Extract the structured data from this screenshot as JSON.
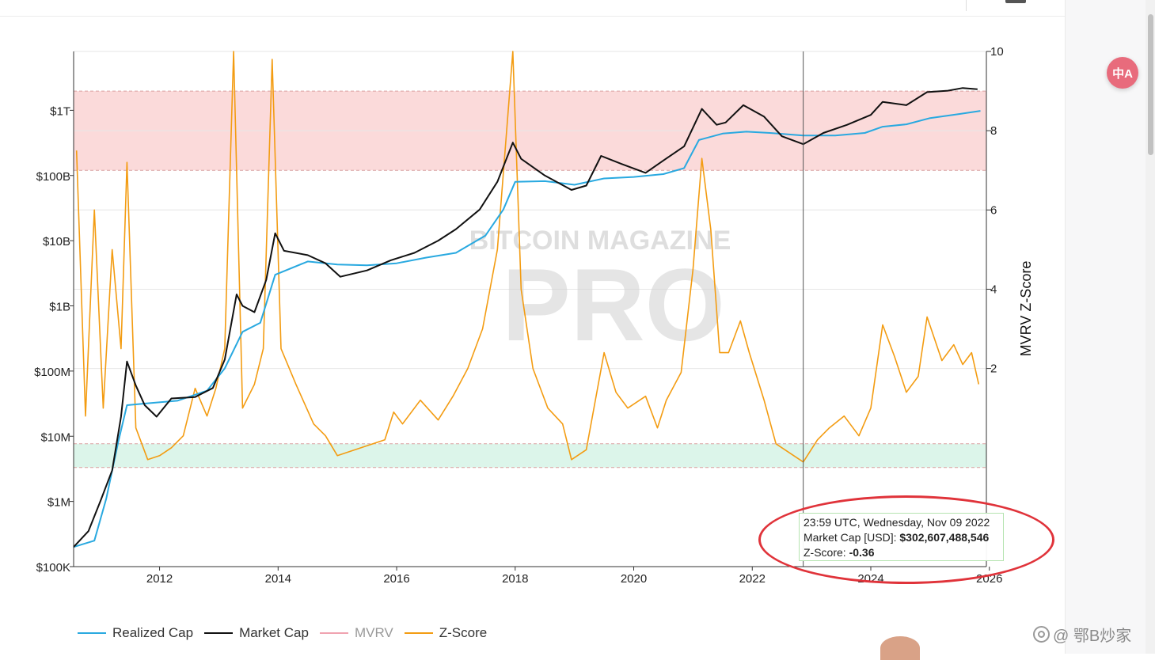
{
  "chart_data": {
    "type": "line",
    "title": "",
    "watermark": [
      "BITCOIN MAGAZINE",
      "PRO"
    ],
    "x_range": [
      2010.55,
      2025.95
    ],
    "x_ticks": [
      {
        "value": 2012,
        "label": "2012"
      },
      {
        "value": 2014,
        "label": "2014"
      },
      {
        "value": 2016,
        "label": "2016"
      },
      {
        "value": 2018,
        "label": "2018"
      },
      {
        "value": 2020,
        "label": "2020"
      },
      {
        "value": 2022,
        "label": "2022"
      },
      {
        "value": 2024,
        "label": "2024"
      },
      {
        "value": 2026,
        "label": "2026"
      }
    ],
    "y_left": {
      "scale": "log",
      "range": [
        100000,
        8000000000000
      ],
      "ticks": [
        {
          "value": 100000,
          "label": "$100K"
        },
        {
          "value": 1000000,
          "label": "$1M"
        },
        {
          "value": 10000000,
          "label": "$10M"
        },
        {
          "value": 100000000,
          "label": "$100M"
        },
        {
          "value": 1000000000,
          "label": "$1B"
        },
        {
          "value": 10000000000,
          "label": "$10B"
        },
        {
          "value": 100000000000,
          "label": "$100B"
        },
        {
          "value": 1000000000000,
          "label": "$1T"
        }
      ]
    },
    "y_right": {
      "label": "MVRV Z-Score",
      "range": [
        -3,
        10
      ],
      "ticks": [
        {
          "value": 2,
          "label": "2"
        },
        {
          "value": 4,
          "label": "4"
        },
        {
          "value": 6,
          "label": "6"
        },
        {
          "value": 8,
          "label": "8"
        },
        {
          "value": 10,
          "label": "10"
        }
      ]
    },
    "bands": [
      {
        "name": "overvalued",
        "from": 7,
        "to": 9,
        "color": "#fbdada"
      },
      {
        "name": "undervalued",
        "from": -0.5,
        "to": 0.1,
        "color": "#dcf5ea"
      }
    ],
    "crosshair_x": 2022.86,
    "legend": [
      {
        "label": "Realized Cap",
        "color": "#29a9e0",
        "active": true
      },
      {
        "label": "Market Cap",
        "color": "#111111",
        "active": true
      },
      {
        "label": "MVRV",
        "color": "#f0a3b0",
        "active": false
      },
      {
        "label": "Z-Score",
        "color": "#f39c12",
        "active": true
      }
    ],
    "series": [
      {
        "name": "Market Cap",
        "axis": "left",
        "color": "#111111",
        "points": [
          [
            2010.55,
            200000
          ],
          [
            2010.8,
            350000
          ],
          [
            2011.0,
            1000000
          ],
          [
            2011.2,
            3000000
          ],
          [
            2011.35,
            20000000
          ],
          [
            2011.45,
            140000000
          ],
          [
            2011.6,
            60000000
          ],
          [
            2011.75,
            30000000
          ],
          [
            2011.95,
            20000000
          ],
          [
            2012.2,
            38000000
          ],
          [
            2012.6,
            40000000
          ],
          [
            2012.9,
            55000000
          ],
          [
            2013.1,
            150000000
          ],
          [
            2013.3,
            1500000000
          ],
          [
            2013.4,
            1000000000
          ],
          [
            2013.6,
            800000000
          ],
          [
            2013.8,
            2500000000
          ],
          [
            2013.95,
            13000000000
          ],
          [
            2014.1,
            7000000000
          ],
          [
            2014.5,
            6000000000
          ],
          [
            2014.8,
            4500000000
          ],
          [
            2015.05,
            2800000000
          ],
          [
            2015.5,
            3500000000
          ],
          [
            2015.9,
            5000000000
          ],
          [
            2016.3,
            6500000000
          ],
          [
            2016.7,
            10000000000
          ],
          [
            2017.0,
            15000000000
          ],
          [
            2017.4,
            30000000000
          ],
          [
            2017.7,
            80000000000
          ],
          [
            2017.96,
            320000000000
          ],
          [
            2018.1,
            180000000000
          ],
          [
            2018.5,
            100000000000
          ],
          [
            2018.95,
            60000000000
          ],
          [
            2019.2,
            70000000000
          ],
          [
            2019.45,
            200000000000
          ],
          [
            2019.8,
            150000000000
          ],
          [
            2020.2,
            110000000000
          ],
          [
            2020.5,
            170000000000
          ],
          [
            2020.85,
            280000000000
          ],
          [
            2021.15,
            1050000000000
          ],
          [
            2021.4,
            600000000000
          ],
          [
            2021.55,
            650000000000
          ],
          [
            2021.85,
            1200000000000
          ],
          [
            2022.2,
            800000000000
          ],
          [
            2022.5,
            400000000000
          ],
          [
            2022.86,
            302607488546
          ],
          [
            2023.2,
            450000000000
          ],
          [
            2023.6,
            600000000000
          ],
          [
            2024.0,
            850000000000
          ],
          [
            2024.2,
            1350000000000
          ],
          [
            2024.6,
            1200000000000
          ],
          [
            2024.95,
            1900000000000
          ],
          [
            2025.3,
            2000000000000
          ],
          [
            2025.55,
            2200000000000
          ],
          [
            2025.8,
            2100000000000
          ]
        ]
      },
      {
        "name": "Realized Cap",
        "axis": "left",
        "color": "#29a9e0",
        "points": [
          [
            2010.55,
            200000
          ],
          [
            2010.9,
            250000
          ],
          [
            2011.1,
            1100000
          ],
          [
            2011.3,
            8000000
          ],
          [
            2011.45,
            30000000
          ],
          [
            2011.8,
            32000000
          ],
          [
            2012.3,
            35000000
          ],
          [
            2012.8,
            50000000
          ],
          [
            2013.1,
            110000000
          ],
          [
            2013.4,
            400000000
          ],
          [
            2013.7,
            550000000
          ],
          [
            2013.95,
            3000000000
          ],
          [
            2014.5,
            4800000000
          ],
          [
            2015.0,
            4300000000
          ],
          [
            2015.5,
            4200000000
          ],
          [
            2016.0,
            4500000000
          ],
          [
            2016.5,
            5500000000
          ],
          [
            2017.0,
            6500000000
          ],
          [
            2017.5,
            12000000000
          ],
          [
            2017.8,
            30000000000
          ],
          [
            2018.0,
            80000000000
          ],
          [
            2018.5,
            82000000000
          ],
          [
            2019.0,
            72000000000
          ],
          [
            2019.5,
            90000000000
          ],
          [
            2020.0,
            95000000000
          ],
          [
            2020.5,
            105000000000
          ],
          [
            2020.85,
            130000000000
          ],
          [
            2021.1,
            350000000000
          ],
          [
            2021.5,
            440000000000
          ],
          [
            2021.9,
            470000000000
          ],
          [
            2022.3,
            450000000000
          ],
          [
            2022.86,
            410000000000
          ],
          [
            2023.4,
            410000000000
          ],
          [
            2023.9,
            450000000000
          ],
          [
            2024.2,
            560000000000
          ],
          [
            2024.6,
            610000000000
          ],
          [
            2025.0,
            760000000000
          ],
          [
            2025.5,
            880000000000
          ],
          [
            2025.85,
            980000000000
          ]
        ]
      },
      {
        "name": "Z-Score",
        "axis": "right",
        "color": "#f39c12",
        "points": [
          [
            2010.6,
            7.5
          ],
          [
            2010.75,
            0.8
          ],
          [
            2010.9,
            6.0
          ],
          [
            2011.05,
            1.0
          ],
          [
            2011.2,
            5.0
          ],
          [
            2011.35,
            2.5
          ],
          [
            2011.45,
            7.2
          ],
          [
            2011.6,
            0.5
          ],
          [
            2011.8,
            -0.3
          ],
          [
            2012.0,
            -0.2
          ],
          [
            2012.2,
            0.0
          ],
          [
            2012.4,
            0.3
          ],
          [
            2012.6,
            1.5
          ],
          [
            2012.8,
            0.8
          ],
          [
            2012.95,
            1.5
          ],
          [
            2013.1,
            2.5
          ],
          [
            2013.25,
            10.0
          ],
          [
            2013.4,
            1.0
          ],
          [
            2013.6,
            1.6
          ],
          [
            2013.75,
            2.5
          ],
          [
            2013.9,
            9.8
          ],
          [
            2014.05,
            2.5
          ],
          [
            2014.3,
            1.6
          ],
          [
            2014.6,
            0.6
          ],
          [
            2014.8,
            0.3
          ],
          [
            2015.0,
            -0.2
          ],
          [
            2015.3,
            -0.05
          ],
          [
            2015.6,
            0.1
          ],
          [
            2015.8,
            0.2
          ],
          [
            2015.95,
            0.9
          ],
          [
            2016.1,
            0.6
          ],
          [
            2016.4,
            1.2
          ],
          [
            2016.7,
            0.7
          ],
          [
            2016.95,
            1.3
          ],
          [
            2017.2,
            2.0
          ],
          [
            2017.45,
            3.0
          ],
          [
            2017.7,
            5.0
          ],
          [
            2017.96,
            10.0
          ],
          [
            2018.1,
            4.0
          ],
          [
            2018.3,
            2.0
          ],
          [
            2018.55,
            1.0
          ],
          [
            2018.8,
            0.6
          ],
          [
            2018.95,
            -0.3
          ],
          [
            2019.2,
            -0.05
          ],
          [
            2019.5,
            2.4
          ],
          [
            2019.7,
            1.4
          ],
          [
            2019.9,
            1.0
          ],
          [
            2020.2,
            1.3
          ],
          [
            2020.4,
            0.5
          ],
          [
            2020.55,
            1.2
          ],
          [
            2020.8,
            1.9
          ],
          [
            2021.0,
            4.5
          ],
          [
            2021.15,
            7.3
          ],
          [
            2021.3,
            5.5
          ],
          [
            2021.45,
            2.4
          ],
          [
            2021.6,
            2.4
          ],
          [
            2021.8,
            3.2
          ],
          [
            2021.95,
            2.4
          ],
          [
            2022.2,
            1.2
          ],
          [
            2022.4,
            0.1
          ],
          [
            2022.6,
            -0.1
          ],
          [
            2022.86,
            -0.36
          ],
          [
            2023.1,
            0.2
          ],
          [
            2023.3,
            0.5
          ],
          [
            2023.55,
            0.8
          ],
          [
            2023.8,
            0.3
          ],
          [
            2024.0,
            1.0
          ],
          [
            2024.2,
            3.1
          ],
          [
            2024.4,
            2.3
          ],
          [
            2024.6,
            1.4
          ],
          [
            2024.8,
            1.8
          ],
          [
            2024.95,
            3.3
          ],
          [
            2025.2,
            2.2
          ],
          [
            2025.4,
            2.6
          ],
          [
            2025.55,
            2.1
          ],
          [
            2025.7,
            2.4
          ],
          [
            2025.82,
            1.6
          ]
        ]
      }
    ],
    "tooltip": {
      "time": "23:59 UTC, Wednesday, Nov 09 2022",
      "market_cap_label": "Market Cap [USD]:",
      "market_cap_value": "$302,607,488,546",
      "zscore_label": "Z-Score:",
      "zscore_value": "-0.36"
    }
  },
  "page": {
    "credit_text": "@ 鄂B炒家",
    "translate_label": "中A"
  }
}
